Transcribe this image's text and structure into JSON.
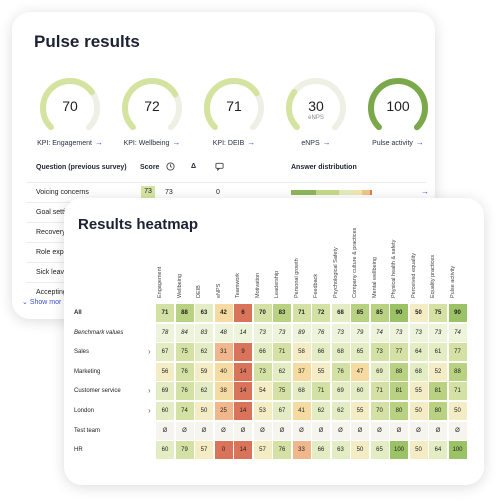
{
  "pulse": {
    "title": "Pulse results",
    "kpis": [
      {
        "value": "70",
        "sub": "",
        "label": "KPI: Engagement",
        "fill": 0.7,
        "color": "#d5e3a0"
      },
      {
        "value": "72",
        "sub": "",
        "label": "KPI: Wellbeing",
        "fill": 0.72,
        "color": "#d5e3a0"
      },
      {
        "value": "71",
        "sub": "",
        "label": "KPI: DEIB",
        "fill": 0.71,
        "color": "#d5e3a0"
      },
      {
        "value": "30",
        "sub": "eNPS",
        "label": "eNPS",
        "fill": 0.3,
        "color": "#d5e3a0"
      },
      {
        "value": "100",
        "sub": "",
        "label": "Pulse activity",
        "fill": 1.0,
        "color": "#7aa84a"
      }
    ],
    "table": {
      "headers": {
        "question": "Question (previous survey)",
        "score": "Score",
        "clock_icon": "clock-icon",
        "delta": "Δ",
        "chat_icon": "chat-icon",
        "dist": "Answer distribution"
      },
      "rows": [
        {
          "label": "Voicing concerns",
          "score": "73",
          "prev": "73",
          "delta": "0"
        },
        {
          "label": "Goal setting"
        },
        {
          "label": "Recovery"
        },
        {
          "label": "Role expecta"
        },
        {
          "label": "Sick leave"
        },
        {
          "label": "Accepting di"
        }
      ],
      "show_more": "Show mor"
    }
  },
  "heatmap": {
    "title": "Results heatmap",
    "columns": [
      "Engagement",
      "Wellbeing",
      "DEIB",
      "eNPS",
      "Teamwork",
      "Motivation",
      "Leadership",
      "Personal growth",
      "Feedback",
      "Psychological Safety",
      "Company culture & practices",
      "Mental wellbeing",
      "Physical health & safety",
      "Perceived equality",
      "Equality practices",
      "Pulse activity"
    ],
    "rows": [
      {
        "label": "All",
        "chevron": false,
        "values": [
          "71",
          "88",
          "63",
          "42",
          "6",
          "70",
          "83",
          "71",
          "72",
          "68",
          "85",
          "85",
          "90",
          "50",
          "75",
          "90"
        ]
      },
      {
        "label": "Benchmark values",
        "chevron": false,
        "italic": true,
        "values": [
          "78",
          "84",
          "83",
          "48",
          "14",
          "73",
          "73",
          "89",
          "76",
          "73",
          "79",
          "74",
          "73",
          "73",
          "73",
          "74"
        ]
      },
      {
        "label": "Sales",
        "chevron": true,
        "values": [
          "67",
          "75",
          "62",
          "31",
          "9",
          "66",
          "71",
          "58",
          "66",
          "68",
          "65",
          "73",
          "77",
          "64",
          "61",
          "77"
        ]
      },
      {
        "label": "Marketing",
        "chevron": false,
        "values": [
          "56",
          "76",
          "59",
          "40",
          "14",
          "73",
          "62",
          "37",
          "55",
          "76",
          "47",
          "69",
          "88",
          "68",
          "52",
          "88"
        ]
      },
      {
        "label": "Customer service",
        "chevron": true,
        "values": [
          "69",
          "76",
          "62",
          "38",
          "14",
          "54",
          "75",
          "68",
          "71",
          "69",
          "60",
          "71",
          "81",
          "55",
          "81",
          "71"
        ]
      },
      {
        "label": "London",
        "chevron": true,
        "values": [
          "60",
          "74",
          "50",
          "25",
          "14",
          "53",
          "67",
          "41",
          "62",
          "62",
          "55",
          "70",
          "80",
          "50",
          "80",
          "50"
        ]
      },
      {
        "label": "Test team",
        "chevron": false,
        "values": [
          "Ø",
          "Ø",
          "Ø",
          "Ø",
          "Ø",
          "Ø",
          "Ø",
          "Ø",
          "Ø",
          "Ø",
          "Ø",
          "Ø",
          "Ø",
          "Ø",
          "Ø",
          "Ø"
        ]
      },
      {
        "label": "HR",
        "chevron": false,
        "values": [
          "60",
          "79",
          "57",
          "0",
          "14",
          "57",
          "76",
          "33",
          "66",
          "63",
          "50",
          "65",
          "100",
          "50",
          "64",
          "100"
        ]
      }
    ]
  }
}
